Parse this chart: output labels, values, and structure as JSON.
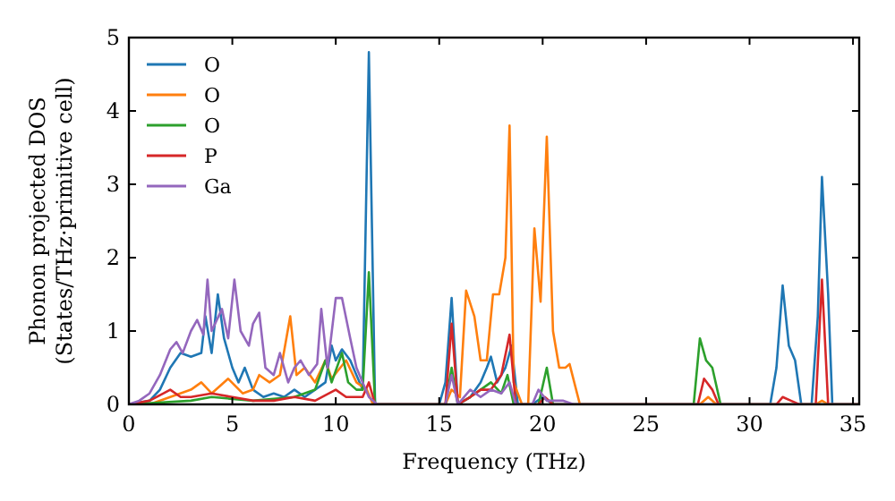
{
  "chart_data": {
    "type": "line",
    "xlabel": "Frequency (THz)",
    "ylabel": "Phonon projected DOS\n(States/THz·primitive cell)",
    "xlim": [
      0,
      35.3
    ],
    "ylim": [
      0,
      5
    ],
    "xticks": [
      0,
      5,
      10,
      15,
      20,
      25,
      30,
      35
    ],
    "yticks": [
      0,
      1,
      2,
      3,
      4,
      5
    ],
    "grid": false,
    "legend": "top left",
    "series": [
      {
        "name": "O",
        "color": "#1f77b4",
        "x": [
          0,
          1,
          1.5,
          2,
          2.5,
          3,
          3.5,
          3.7,
          4,
          4.3,
          4.6,
          5,
          5.3,
          5.6,
          6,
          6.5,
          7,
          7.5,
          8,
          8.5,
          9,
          9.5,
          9.8,
          10,
          10.3,
          10.7,
          11,
          11.3,
          11.6,
          11.9,
          15,
          15.3,
          15.6,
          15.9,
          16.5,
          17,
          17.3,
          17.5,
          17.8,
          18.2,
          18.5,
          18.8,
          19.5,
          20,
          20.5,
          31,
          31.3,
          31.6,
          31.9,
          32.2,
          32.5,
          33,
          33.3,
          33.5,
          33.8,
          34,
          35.3
        ],
        "values": [
          0,
          0.05,
          0.2,
          0.5,
          0.7,
          0.65,
          0.7,
          1.2,
          0.7,
          1.5,
          0.9,
          0.5,
          0.3,
          0.5,
          0.2,
          0.1,
          0.15,
          0.1,
          0.2,
          0.1,
          0.2,
          0.3,
          0.8,
          0.6,
          0.75,
          0.6,
          0.4,
          0.2,
          4.8,
          0,
          0,
          0.3,
          1.45,
          0,
          0.1,
          0.3,
          0.5,
          0.65,
          0.3,
          0.5,
          0.8,
          0,
          0,
          0.1,
          0,
          0,
          0.5,
          1.62,
          0.8,
          0.6,
          0,
          0,
          1.2,
          3.1,
          1.5,
          0,
          0
        ]
      },
      {
        "name": "O",
        "color": "#ff7f0e",
        "x": [
          0,
          1,
          2,
          3,
          3.5,
          4,
          4.8,
          5.5,
          6,
          6.3,
          6.8,
          7.3,
          7.8,
          8.1,
          8.5,
          9,
          9.5,
          9.8,
          10.5,
          11,
          11.5,
          11.8,
          15.3,
          15.6,
          16,
          16.3,
          16.7,
          17,
          17.3,
          17.6,
          17.9,
          18.2,
          18.4,
          18.6,
          19,
          19.3,
          19.6,
          19.9,
          20.2,
          20.5,
          20.8,
          21.1,
          21.3,
          21.8,
          27.6,
          28,
          28.4,
          33.2,
          33.5,
          33.8,
          35.3
        ],
        "values": [
          0,
          0,
          0.1,
          0.2,
          0.3,
          0.15,
          0.35,
          0.15,
          0.2,
          0.4,
          0.3,
          0.4,
          1.2,
          0.4,
          0.5,
          0.3,
          0.6,
          0.35,
          0.6,
          0.3,
          0.2,
          0,
          0,
          0.2,
          0.1,
          1.55,
          1.2,
          0.6,
          0.6,
          1.5,
          1.5,
          2,
          3.8,
          0.3,
          0,
          0,
          2.4,
          1.4,
          3.65,
          1,
          0.5,
          0.5,
          0.55,
          0,
          0,
          0.1,
          0,
          0,
          0.05,
          0,
          0
        ]
      },
      {
        "name": "O",
        "color": "#2ca02c",
        "x": [
          0,
          3,
          4,
          6,
          8,
          9,
          9.5,
          9.8,
          10.3,
          10.6,
          11,
          11.3,
          11.6,
          11.9,
          15.3,
          15.6,
          15.9,
          16.5,
          17,
          17.5,
          18,
          18.3,
          18.6,
          19.8,
          20.2,
          20.5,
          27.3,
          27.6,
          27.9,
          28.2,
          28.6,
          35.3
        ],
        "values": [
          0,
          0.05,
          0.1,
          0.05,
          0.1,
          0.2,
          0.6,
          0.3,
          0.7,
          0.3,
          0.2,
          0.2,
          1.8,
          0,
          0,
          0.5,
          0,
          0.1,
          0.2,
          0.3,
          0.15,
          0.4,
          0,
          0,
          0.5,
          0,
          0,
          0.9,
          0.6,
          0.5,
          0,
          0
        ]
      },
      {
        "name": "P",
        "color": "#d62728",
        "x": [
          0,
          1,
          2,
          2.5,
          3,
          4,
          5,
          6,
          7,
          8,
          9,
          10,
          10.5,
          11.3,
          11.6,
          11.9,
          15.3,
          15.6,
          15.9,
          16.5,
          17,
          17.5,
          18,
          18.4,
          18.7,
          19.8,
          20.1,
          20.5,
          27.5,
          27.8,
          28.2,
          28.5,
          31.3,
          31.6,
          32,
          32.4,
          33.2,
          33.5,
          33.8,
          35.3
        ],
        "values": [
          0,
          0.05,
          0.2,
          0.1,
          0.1,
          0.15,
          0.1,
          0.05,
          0.05,
          0.1,
          0.05,
          0.2,
          0.1,
          0.1,
          0.3,
          0,
          0,
          1.1,
          0,
          0.1,
          0.2,
          0.2,
          0.4,
          0.95,
          0,
          0,
          0.1,
          0,
          0,
          0.35,
          0.2,
          0,
          0,
          0.1,
          0.05,
          0,
          0,
          1.7,
          0,
          0
        ]
      },
      {
        "name": "Ga",
        "color": "#9467bd",
        "x": [
          0,
          0.5,
          1,
          1.5,
          2,
          2.3,
          2.6,
          3,
          3.3,
          3.6,
          3.8,
          4,
          4.5,
          4.8,
          5.1,
          5.4,
          5.8,
          6,
          6.3,
          6.6,
          7,
          7.3,
          7.7,
          8,
          8.3,
          8.7,
          9.1,
          9.3,
          9.6,
          10,
          10.3,
          10.7,
          11,
          11.3,
          11.6,
          12,
          15.3,
          15.6,
          15.9,
          16.5,
          17,
          17.5,
          18,
          18.4,
          18.7,
          19.5,
          19.8,
          20.2,
          21,
          21.5,
          35.3
        ],
        "values": [
          0,
          0.05,
          0.15,
          0.4,
          0.75,
          0.85,
          0.7,
          1,
          1.15,
          0.95,
          1.7,
          1,
          1.3,
          0.9,
          1.7,
          1,
          0.8,
          1.1,
          1.25,
          0.5,
          0.4,
          0.7,
          0.3,
          0.5,
          0.6,
          0.4,
          0.55,
          1.3,
          0.5,
          1.45,
          1.45,
          0.9,
          0.5,
          0.3,
          0.1,
          0,
          0,
          0.4,
          0,
          0.2,
          0.1,
          0.2,
          0.15,
          0.3,
          0,
          0,
          0.2,
          0.05,
          0.05,
          0,
          0
        ]
      }
    ]
  }
}
